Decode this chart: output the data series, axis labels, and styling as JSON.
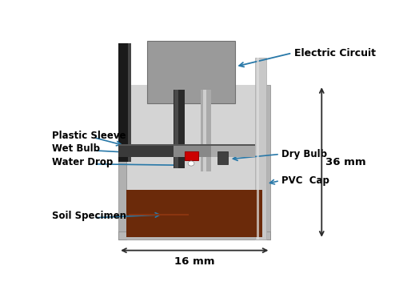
{
  "bg_color": "#ffffff",
  "arrow_color": "#2878a8",
  "dim_arrow_color": "#2c2c2c",
  "labels": {
    "electric_circuit": "Electric Circuit",
    "plastic_sleeve": "Plastic Sleeve",
    "wet_bulb": "Wet Bulb",
    "water_drop": "Water Drop",
    "dry_bulb": "Dry Bulb",
    "pvc_cap": "PVC  Cap",
    "soil_specimen": "Soil Specimen",
    "dim_16": "16 mm",
    "dim_36": "36 mm"
  }
}
